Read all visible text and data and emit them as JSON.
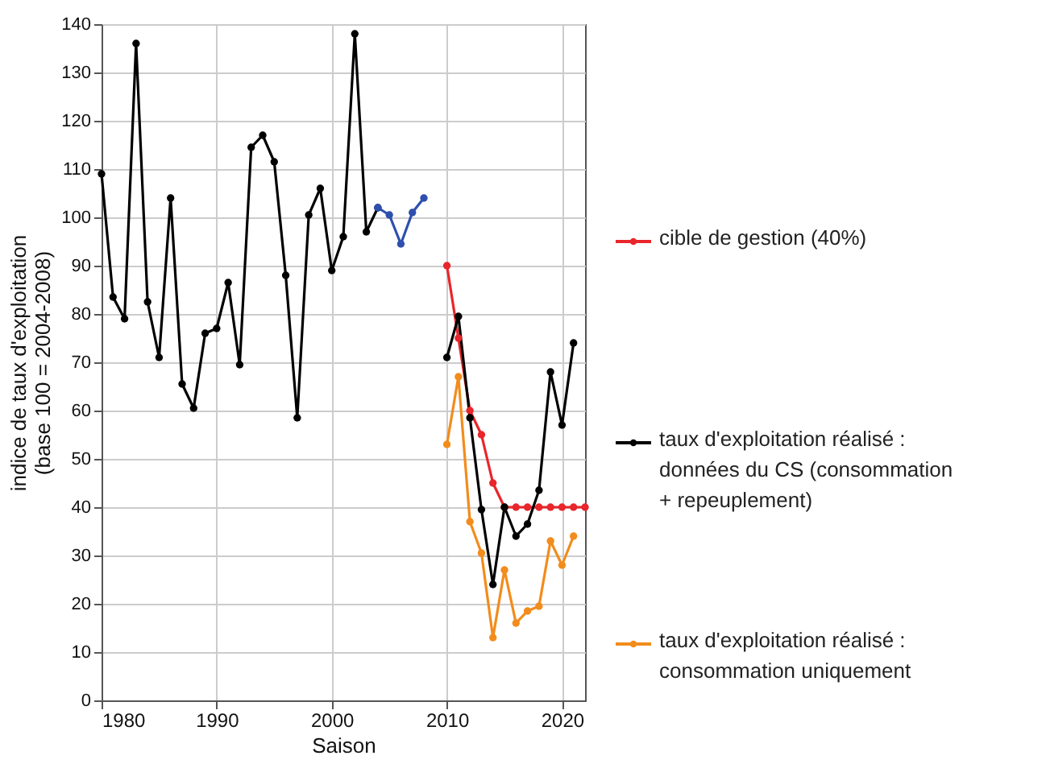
{
  "chart_data": {
    "type": "line",
    "xlabel": "Saison",
    "ylabel": "indice de taux d'exploitation\n(base 100 = 2004-2008)",
    "xlim": [
      1980,
      2022
    ],
    "xticks": [
      1980,
      1990,
      2000,
      2010,
      2020
    ],
    "ylim": [
      0,
      140
    ],
    "yticks": [
      0,
      10,
      20,
      30,
      40,
      50,
      60,
      70,
      80,
      90,
      100,
      110,
      120,
      130,
      140
    ],
    "grid": true,
    "legend": "right",
    "marker": "circle",
    "line_style": "solid",
    "series": [
      {
        "name": "cible de gestion (40%)",
        "color": "#e8262b",
        "x": [
          2010,
          2011,
          2012,
          2013,
          2014,
          2015,
          2016,
          2017,
          2018,
          2019,
          2020,
          2021,
          2022
        ],
        "values": [
          90,
          75,
          60,
          55,
          45,
          40,
          40,
          40,
          40,
          40,
          40,
          40,
          40
        ]
      },
      {
        "name": "taux d'exploitation réalisé :\ndonnées du CS (consommation\n+ repeuplement)",
        "color": "#000000",
        "x": [
          1980,
          1981,
          1982,
          1983,
          1984,
          1985,
          1986,
          1987,
          1988,
          1989,
          1990,
          1991,
          1992,
          1993,
          1994,
          1995,
          1996,
          1997,
          1998,
          1999,
          2000,
          2001,
          2002,
          2003,
          2004,
          2005,
          2006,
          2007,
          2008,
          2009,
          2010,
          2011,
          2012,
          2013,
          2014,
          2015,
          2016,
          2017,
          2018,
          2019,
          2020,
          2021
        ],
        "values": [
          109,
          83.5,
          79,
          136,
          82.5,
          71,
          104,
          65.5,
          60.5,
          76,
          77,
          86.5,
          69.5,
          114.5,
          117,
          111.5,
          88,
          58.5,
          100.5,
          106,
          89,
          96,
          138,
          97,
          102,
          null,
          null,
          null,
          null,
          null,
          71,
          79.5,
          58.5,
          39.5,
          24,
          40,
          34,
          36.5,
          43.5,
          68,
          57,
          74
        ]
      },
      {
        "name": "taux d'exploitation réalisé :\nconsommation uniquement",
        "color": "#f28c1c",
        "x": [
          2010,
          2011,
          2012,
          2013,
          2014,
          2015,
          2016,
          2017,
          2018,
          2019,
          2020,
          2021
        ],
        "values": [
          53,
          67,
          37,
          30.5,
          13,
          27,
          16,
          18.5,
          19.5,
          33,
          28,
          34
        ]
      },
      {
        "color": "#2f4fae",
        "x": [
          2004,
          2005,
          2006,
          2007,
          2008
        ],
        "values": [
          102,
          100.5,
          94.5,
          101,
          104
        ]
      }
    ]
  }
}
